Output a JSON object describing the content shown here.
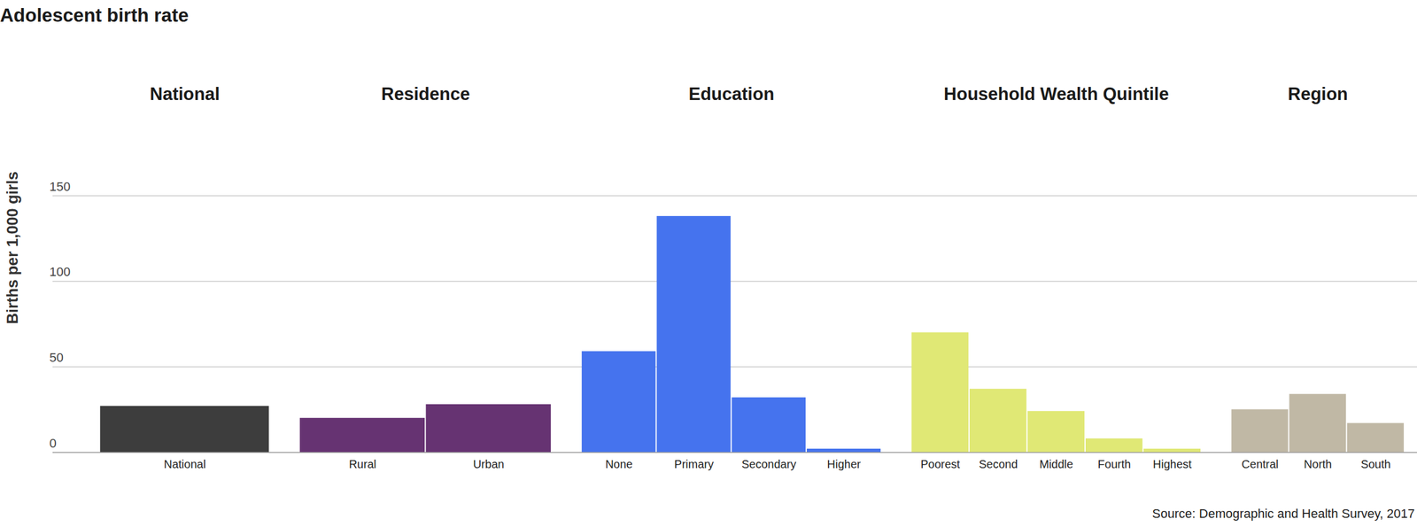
{
  "chart_data": {
    "type": "bar",
    "title": "Adolescent birth rate",
    "y_label": "Births per 1,000 girls",
    "caption": "Source: Demographic and Health Survey, 2017",
    "groups": [
      {
        "name": "National",
        "categories": [
          "National"
        ],
        "values": [
          27
        ],
        "color": "#3d3d3d"
      },
      {
        "name": "Residence",
        "categories": [
          "Rural",
          "Urban"
        ],
        "values": [
          20,
          28
        ],
        "color": "#663372"
      },
      {
        "name": "Education",
        "categories": [
          "None",
          "Primary",
          "Secondary",
          "Higher"
        ],
        "values": [
          59,
          138,
          32,
          2
        ],
        "color": "#4573ee"
      },
      {
        "name": "Household Wealth Quintile",
        "categories": [
          "Poorest",
          "Second",
          "Middle",
          "Fourth",
          "Highest"
        ],
        "values": [
          70,
          37,
          24,
          8,
          2
        ],
        "color": "#e0e875"
      },
      {
        "name": "Region",
        "categories": [
          "Central",
          "North",
          "South"
        ],
        "values": [
          25,
          34,
          17
        ],
        "color": "#c0b8a5"
      }
    ],
    "ylim": [
      0,
      150
    ],
    "yticks": [
      0,
      50,
      100,
      150
    ],
    "grid": true
  }
}
